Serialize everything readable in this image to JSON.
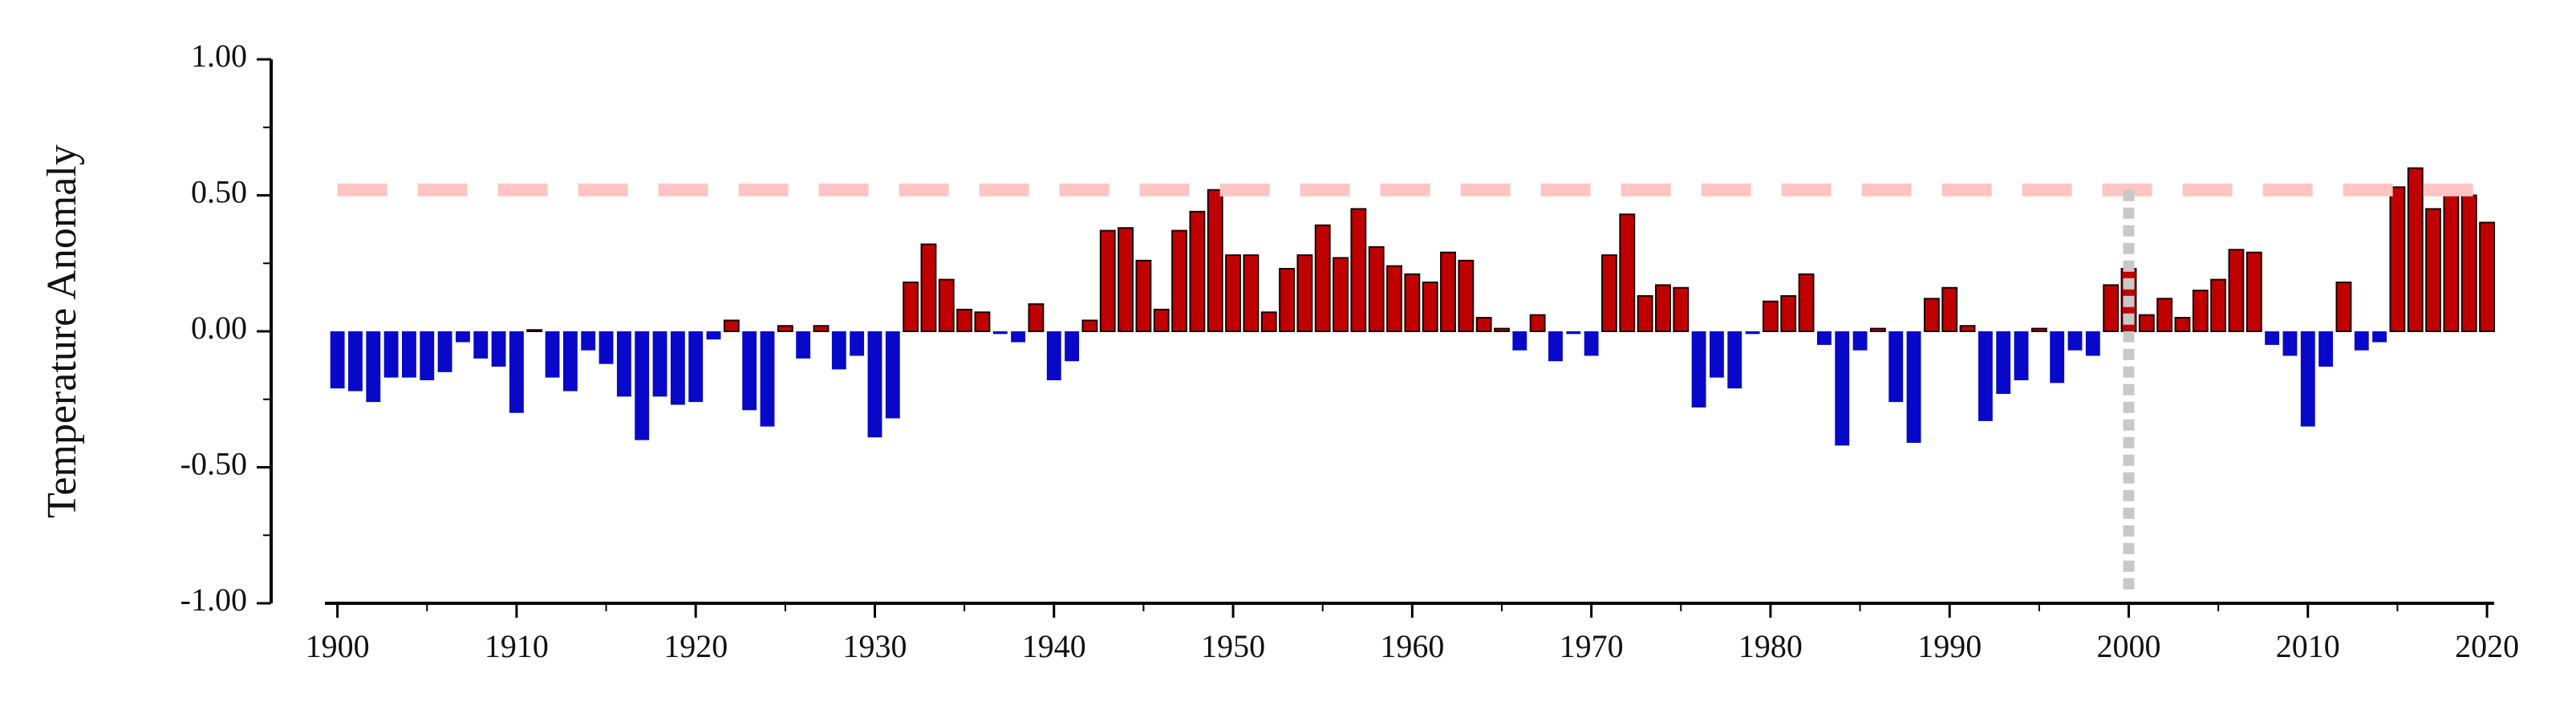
{
  "chart_data": {
    "type": "bar",
    "ylabel": "Temperature Anomaly",
    "x": [
      1900,
      1901,
      1902,
      1903,
      1904,
      1905,
      1906,
      1907,
      1908,
      1909,
      1910,
      1911,
      1912,
      1913,
      1914,
      1915,
      1916,
      1917,
      1918,
      1919,
      1920,
      1921,
      1922,
      1923,
      1924,
      1925,
      1926,
      1927,
      1928,
      1929,
      1930,
      1931,
      1932,
      1933,
      1934,
      1935,
      1936,
      1937,
      1938,
      1939,
      1940,
      1941,
      1942,
      1943,
      1944,
      1945,
      1946,
      1947,
      1948,
      1949,
      1950,
      1951,
      1952,
      1953,
      1954,
      1955,
      1956,
      1957,
      1958,
      1959,
      1960,
      1961,
      1962,
      1963,
      1964,
      1965,
      1966,
      1967,
      1968,
      1969,
      1970,
      1971,
      1972,
      1973,
      1974,
      1975,
      1976,
      1977,
      1978,
      1979,
      1980,
      1981,
      1982,
      1983,
      1984,
      1985,
      1986,
      1987,
      1988,
      1989,
      1990,
      1991,
      1992,
      1993,
      1994,
      1995,
      1996,
      1997,
      1998,
      1999,
      2000,
      2001,
      2002,
      2003,
      2004,
      2005,
      2006,
      2007,
      2008,
      2009,
      2010,
      2011,
      2012,
      2013,
      2014,
      2015,
      2016,
      2017,
      2018,
      2019,
      2020
    ],
    "values": [
      -0.21,
      -0.22,
      -0.26,
      -0.17,
      -0.17,
      -0.18,
      -0.15,
      -0.04,
      -0.1,
      -0.13,
      -0.3,
      0.005,
      -0.17,
      -0.22,
      -0.07,
      -0.12,
      -0.24,
      -0.4,
      -0.24,
      -0.27,
      -0.26,
      -0.03,
      0.04,
      -0.29,
      -0.35,
      0.02,
      -0.1,
      0.02,
      -0.14,
      -0.09,
      -0.39,
      -0.32,
      0.18,
      0.32,
      0.19,
      0.08,
      0.07,
      -0.01,
      -0.04,
      0.1,
      -0.18,
      -0.11,
      0.04,
      0.37,
      0.38,
      0.26,
      0.08,
      0.37,
      0.44,
      0.52,
      0.28,
      0.28,
      0.07,
      0.23,
      0.28,
      0.39,
      0.27,
      0.45,
      0.31,
      0.24,
      0.21,
      0.18,
      0.29,
      0.26,
      0.05,
      0.01,
      -0.07,
      0.06,
      -0.11,
      -0.01,
      -0.09,
      0.28,
      0.43,
      0.13,
      0.17,
      0.16,
      -0.28,
      -0.17,
      -0.21,
      -0.01,
      0.11,
      0.13,
      0.21,
      -0.05,
      -0.42,
      -0.07,
      0.01,
      -0.26,
      -0.41,
      0.12,
      0.16,
      0.02,
      -0.33,
      -0.23,
      -0.18,
      0.01,
      -0.19,
      -0.07,
      -0.09,
      0.17,
      0.23,
      0.06,
      0.12,
      0.05,
      0.15,
      0.19,
      0.3,
      0.29,
      -0.05,
      -0.09,
      -0.35,
      -0.13,
      0.18,
      -0.07,
      -0.04,
      0.53,
      0.6,
      0.45,
      0.51,
      0.5,
      0.4
    ],
    "colors": {
      "positive": "#c00000",
      "negative": "#0808c8"
    },
    "xlim": [
      1899.3,
      2020.4
    ],
    "xticks": [
      1900,
      1910,
      1920,
      1930,
      1940,
      1950,
      1960,
      1970,
      1980,
      1990,
      2000,
      2010,
      2020
    ],
    "xminorticks": [
      1905,
      1915,
      1925,
      1935,
      1945,
      1955,
      1965,
      1975,
      1985,
      1995,
      2005,
      2015
    ],
    "ylim": [
      -1,
      1
    ],
    "yticks": [
      {
        "value": -1,
        "label": "-1.00"
      },
      {
        "value": -0.5,
        "label": "-0.50"
      },
      {
        "value": 0,
        "label": "0.00"
      },
      {
        "value": 0.5,
        "label": "0.50"
      },
      {
        "value": 1,
        "label": "1.00"
      }
    ],
    "yminorticks": [
      -0.75,
      -0.25,
      0.25,
      0.75
    ],
    "hline": {
      "value": 0.52,
      "color": "#ffc4c4"
    },
    "vline": {
      "value": 2000,
      "color": "#c8c8c8"
    }
  }
}
